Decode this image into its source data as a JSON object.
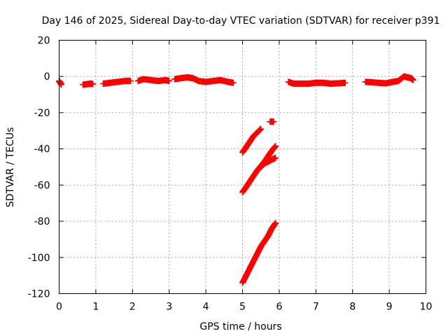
{
  "chart_data": {
    "type": "scatter",
    "title": "Day 146 of 2025, Sidereal Day-to-day VTEC variation (SDTVAR) for receiver p391",
    "xlabel": "GPS time / hours",
    "ylabel": "SDTVAR / TECUs",
    "xlim": [
      0,
      10
    ],
    "ylim": [
      -120,
      20
    ],
    "xticks": [
      0,
      1,
      2,
      3,
      4,
      5,
      6,
      7,
      8,
      9,
      10
    ],
    "yticks": [
      -120,
      -100,
      -80,
      -60,
      -40,
      -20,
      0,
      20
    ],
    "grid": true,
    "legend": "none",
    "marker": "plus",
    "series_color": "#ff0000",
    "segments": [
      {
        "x": [
          0.0,
          0.03,
          0.06
        ],
        "y": [
          -2.5,
          -3.5,
          -4.5
        ]
      },
      {
        "x": [
          0.65,
          0.75,
          0.85,
          0.92
        ],
        "y": [
          -4.5,
          -4.3,
          -4.0,
          -4.2
        ]
      },
      {
        "x": [
          1.2,
          1.4,
          1.6,
          1.8,
          1.95
        ],
        "y": [
          -4.0,
          -3.5,
          -3.0,
          -2.5,
          -2.5
        ]
      },
      {
        "x": [
          2.15,
          2.3,
          2.5,
          2.7,
          2.9,
          3.0
        ],
        "y": [
          -2.5,
          -1.5,
          -2.0,
          -2.5,
          -2.0,
          -2.5
        ]
      },
      {
        "x": [
          3.15,
          3.3,
          3.5,
          3.65,
          3.8,
          4.0,
          4.2,
          4.4,
          4.6,
          4.75
        ],
        "y": [
          -1.5,
          -1.0,
          -0.5,
          -1.0,
          -2.5,
          -3.0,
          -2.5,
          -2.0,
          -3.0,
          -3.5
        ]
      },
      {
        "x": [
          6.25,
          6.4,
          6.6,
          6.8,
          7.0,
          7.2,
          7.4,
          7.6,
          7.8
        ],
        "y": [
          -3.0,
          -4.0,
          -4.0,
          -4.0,
          -3.5,
          -3.5,
          -4.0,
          -3.8,
          -3.5
        ]
      },
      {
        "x": [
          8.35,
          8.5,
          8.7,
          8.9,
          9.1,
          9.25,
          9.4,
          9.5,
          9.6,
          9.65
        ],
        "y": [
          -3.0,
          -3.2,
          -3.5,
          -3.8,
          -3.0,
          -2.5,
          0.0,
          -0.5,
          -1.0,
          -2.0
        ]
      },
      {
        "x": [
          5.0,
          5.1,
          5.2,
          5.3,
          5.4,
          5.5
        ],
        "y": [
          -42,
          -39,
          -36,
          -33,
          -31,
          -29
        ]
      },
      {
        "x": [
          5.75,
          5.85
        ],
        "y": [
          -25,
          -25
        ]
      },
      {
        "x": [
          5.0,
          5.1,
          5.2,
          5.3,
          5.4,
          5.5,
          5.6,
          5.7,
          5.8,
          5.9
        ],
        "y": [
          -64,
          -61,
          -58,
          -55,
          -52,
          -49.5,
          -47,
          -44,
          -41,
          -38.5
        ]
      },
      {
        "x": [
          5.4,
          5.5,
          5.6,
          5.7,
          5.8,
          5.9
        ],
        "y": [
          -52,
          -50,
          -48,
          -47,
          -46,
          -45
        ]
      },
      {
        "x": [
          5.0,
          5.1,
          5.2,
          5.3,
          5.4,
          5.5,
          5.6,
          5.7,
          5.8,
          5.9
        ],
        "y": [
          -114,
          -110,
          -106,
          -102,
          -98,
          -94,
          -91,
          -88,
          -84,
          -81
        ]
      }
    ]
  }
}
